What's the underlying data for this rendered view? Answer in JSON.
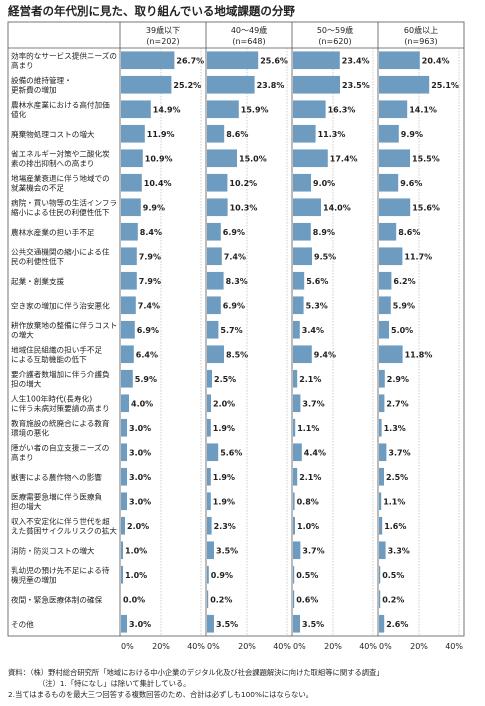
{
  "title": "経営者の年代別に見た、取り組んでいる地域課題の分野",
  "groups": [
    {
      "label": "39歳以下",
      "n": "(n=202)"
    },
    {
      "label": "40～49歳",
      "n": "(n=648)"
    },
    {
      "label": "50～59歳",
      "n": "(n=620)"
    },
    {
      "label": "60歳以上",
      "n": "(n=963)"
    }
  ],
  "axis_ticks": [
    "0%",
    "20%",
    "40%"
  ],
  "footnotes": {
    "source": "資料：（株）野村総合研究所「地域における中小企業のデジタル化及び社会課題解決に向けた取組等に関する調査」",
    "note1": "（注）1.「特になし」は除いて集計している。",
    "note2": "2.当てはまるものを最大三つ回答する複数回答のため、合計は必ずしも100%にはならない。"
  },
  "colors": {
    "bar": "#6e9cc0",
    "grid": "#999999",
    "border": "#555555"
  },
  "chart_data": {
    "type": "bar",
    "orientation": "horizontal",
    "title": "経営者の年代別に見た、取り組んでいる地域課題の分野",
    "xlim": [
      0,
      40
    ],
    "categories": [
      [
        "効率的なサービス提供ニーズの",
        "高まり"
      ],
      [
        "設備の維持管理・",
        "更新費の増加"
      ],
      [
        "農林水産業における高付加価",
        "値化"
      ],
      [
        "廃棄物処理コストの増大"
      ],
      [
        "省エネルギー対策や二酸化炭",
        "素の排出抑制への高まり"
      ],
      [
        "地場産業衰退に伴う地域での",
        "就業機会の不足"
      ],
      [
        "病院・買い物等の生活インフラ",
        "縮小による住民の利便性低下"
      ],
      [
        "農林水産業の担い手不足"
      ],
      [
        "公共交通機関の縮小による住",
        "民の利便性低下"
      ],
      [
        "起業・創業支援"
      ],
      [
        "空き家の増加に伴う治安悪化"
      ],
      [
        "耕作放棄地の整備に伴うコスト",
        "の増大"
      ],
      [
        "地域住民組織の担い手不足",
        "による互助機能の低下"
      ],
      [
        "要介護者数増加に伴う介護負",
        "担の増大"
      ],
      [
        "人生100年時代(長寿化)",
        "に伴う未病対策要請の高まり"
      ],
      [
        "教育施設の統廃合による教育",
        "環境の悪化"
      ],
      [
        "障がい者の自立支援ニーズの",
        "高まり"
      ],
      [
        "獣害による農作物への影響"
      ],
      [
        "医療需要急増に伴う医療負",
        "担の増大"
      ],
      [
        "収入不安定化に伴う世代を超",
        "えた貧困サイクルリスクの拡大"
      ],
      [
        "消防・防災コストの増大"
      ],
      [
        "乳幼児の預け先不足による待",
        "機児童の増加"
      ],
      [
        "夜間・緊急医療体制の確保"
      ],
      [
        "その他"
      ]
    ],
    "series": [
      {
        "name": "39歳以下",
        "values": [
          26.7,
          25.2,
          14.9,
          11.9,
          10.9,
          10.4,
          9.9,
          8.4,
          7.9,
          7.9,
          7.4,
          6.9,
          6.4,
          5.9,
          4.0,
          3.0,
          3.0,
          3.0,
          3.0,
          2.0,
          1.0,
          1.0,
          0.0,
          3.0
        ]
      },
      {
        "name": "40～49歳",
        "values": [
          25.6,
          23.8,
          15.9,
          8.6,
          15.0,
          10.2,
          10.3,
          6.9,
          7.4,
          8.3,
          6.9,
          5.7,
          8.5,
          2.5,
          2.0,
          1.9,
          5.6,
          1.9,
          1.9,
          2.3,
          3.5,
          0.9,
          0.2,
          3.5
        ]
      },
      {
        "name": "50～59歳",
        "values": [
          23.4,
          23.5,
          16.3,
          11.3,
          17.4,
          9.0,
          14.0,
          8.9,
          9.5,
          5.6,
          5.3,
          3.4,
          9.4,
          2.1,
          3.7,
          1.1,
          4.4,
          2.1,
          0.8,
          1.0,
          3.7,
          0.5,
          0.6,
          3.5
        ]
      },
      {
        "name": "60歳以上",
        "values": [
          20.4,
          25.1,
          14.1,
          9.9,
          15.5,
          9.6,
          15.6,
          8.6,
          11.7,
          6.2,
          5.9,
          5.0,
          11.8,
          2.9,
          2.7,
          1.3,
          3.7,
          2.5,
          1.1,
          1.6,
          3.3,
          0.5,
          0.2,
          2.6
        ]
      }
    ]
  }
}
